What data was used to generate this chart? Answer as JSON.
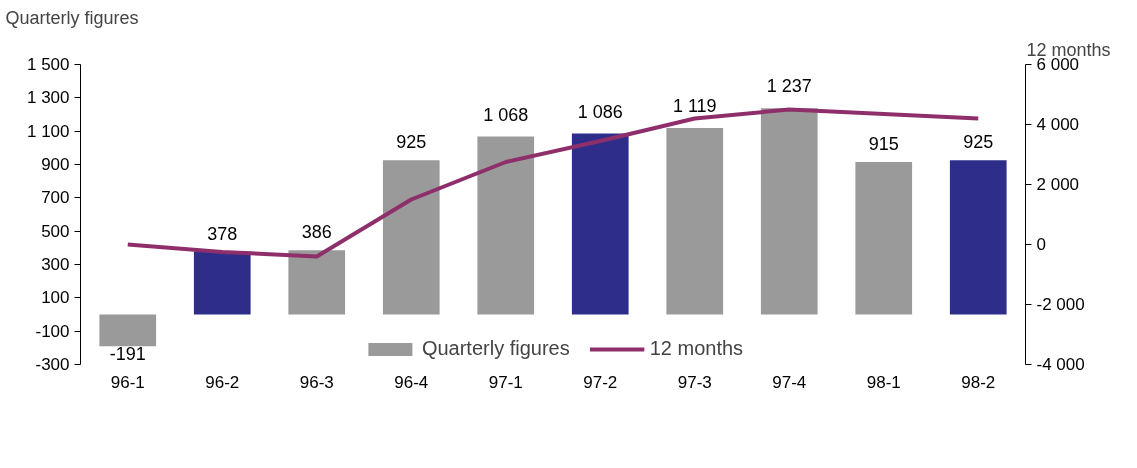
{
  "chart_data": {
    "type": "bar",
    "ylabel": "Quarterly figures",
    "y2label": "12 months",
    "categories": [
      "96-1",
      "96-2",
      "96-3",
      "96-4",
      "97-1",
      "97-2",
      "97-3",
      "97-4",
      "98-1",
      "98-2"
    ],
    "series": [
      {
        "name": "Quarterly figures",
        "colors": [
          "#9a9a9a",
          "#2e2e8a",
          "#9a9a9a",
          "#9a9a9a",
          "#9a9a9a",
          "#2e2e8a",
          "#9a9a9a",
          "#9a9a9a",
          "#9a9a9a",
          "#2e2e8a"
        ],
        "values": [
          -191,
          378,
          386,
          925,
          1068,
          1086,
          1119,
          1237,
          915,
          925
        ],
        "value_labels": [
          "-191",
          "378",
          "386",
          "925",
          "1 068",
          "1 086",
          "1 119",
          "1 237",
          "915",
          "925"
        ]
      },
      {
        "name": "12 months",
        "type": "line",
        "axis": "y2",
        "color": "#8e2f6b",
        "values": [
          0,
          -250,
          -400,
          1500,
          2750,
          3450,
          4200,
          4500,
          4350,
          4200
        ]
      }
    ],
    "ylim": [
      -300,
      1500
    ],
    "yticks": [
      {
        "value": -300,
        "label": "-300"
      },
      {
        "value": -100,
        "label": "-100"
      },
      100,
      300,
      500,
      700,
      900,
      {
        "value": 1100,
        "label": "1 100"
      },
      {
        "value": 1300,
        "label": "1 300"
      },
      {
        "value": 1500,
        "label": "1 500"
      }
    ],
    "y2lim": [
      -4000,
      6000
    ],
    "y2ticks": [
      {
        "value": -4000,
        "label": "-4 000"
      },
      {
        "value": -2000,
        "label": "-2 000"
      },
      0,
      {
        "value": 2000,
        "label": "2 000"
      },
      {
        "value": 4000,
        "label": "4 000"
      },
      {
        "value": 6000,
        "label": "6 000"
      }
    ],
    "grid": false,
    "legend": "bottom",
    "line_style": "solid",
    "marker": "none"
  }
}
